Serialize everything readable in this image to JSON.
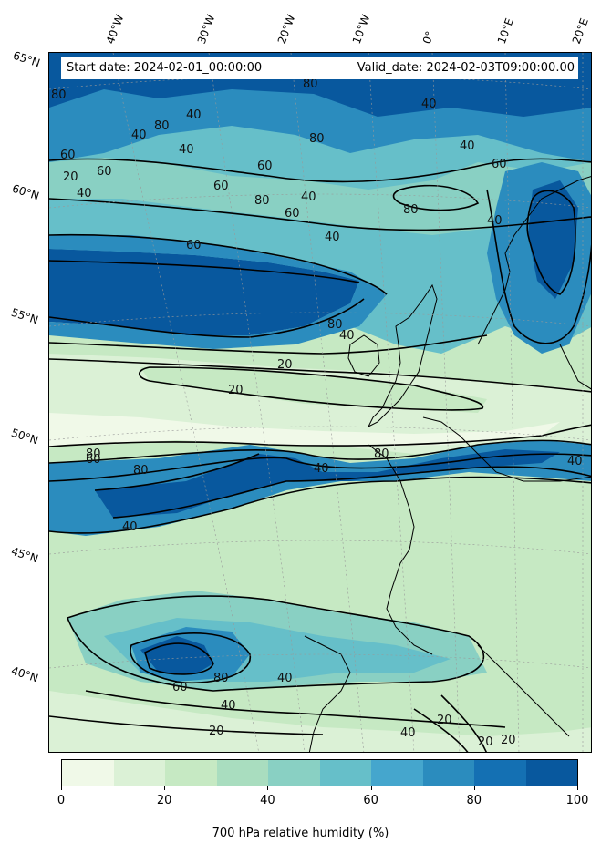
{
  "header": {
    "start_label": "Start date: 2024-02-01_00:00:00",
    "valid_label": "Valid_date: 2024-02-03T09:00:00.00"
  },
  "longitude_labels": [
    "40°W",
    "30°W",
    "20°W",
    "10°W",
    "0°",
    "10°E",
    "20°E"
  ],
  "latitude_labels": [
    "65°N",
    "60°N",
    "55°N",
    "50°N",
    "45°N",
    "40°N"
  ],
  "colorbar": {
    "label": "700 hPa relative humidity (%)",
    "ticks": [
      "0",
      "20",
      "40",
      "60",
      "80",
      "100"
    ],
    "colors": [
      "#f0f9e8",
      "#dbf1d6",
      "#c6e9c3",
      "#a9ddbf",
      "#89d0c3",
      "#66bfc9",
      "#45a6cd",
      "#2b8cbe",
      "#1470b3",
      "#08589e"
    ]
  },
  "contour_labels": [
    "80",
    "80",
    "40",
    "40",
    "40",
    "80",
    "80",
    "60",
    "60",
    "20",
    "40",
    "40",
    "60",
    "40",
    "40",
    "80",
    "60",
    "60",
    "40",
    "80",
    "60",
    "60",
    "40",
    "80",
    "40",
    "20",
    "20",
    "80",
    "40",
    "60",
    "80",
    "80",
    "40",
    "40",
    "60",
    "80",
    "40",
    "20",
    "40",
    "20",
    "20",
    "20",
    "40"
  ]
}
